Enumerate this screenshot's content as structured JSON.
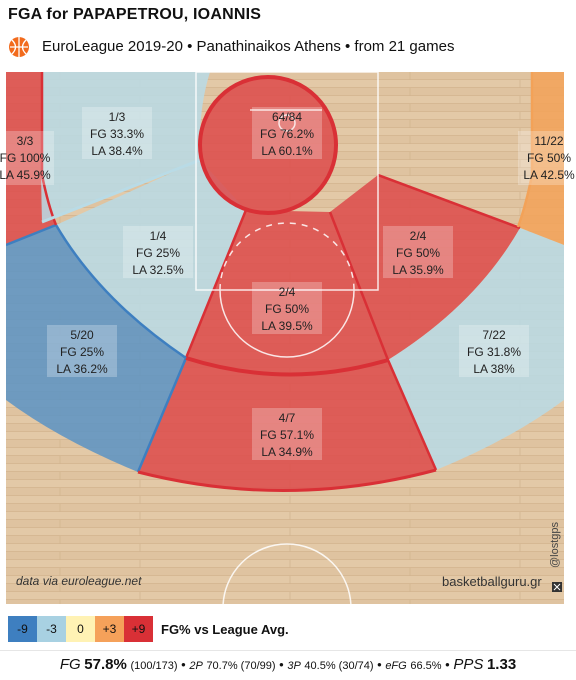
{
  "header": {
    "title": "FGA for PAPAPETROU, IOANNIS",
    "subtitle": "EuroLeague 2019-20 • Panathinaikos Athens • from  21 games"
  },
  "court": {
    "credit_left": "data via euroleague.net",
    "credit_right": "basketballguru.gr",
    "watermark": "@lostgps",
    "zones": [
      {
        "id": "left-corner-3",
        "made_att": "3/3",
        "fg": "FG 100%",
        "la": "LA 45.9%",
        "color": "#dd4a4a"
      },
      {
        "id": "left-wing-mid",
        "made_att": "1/3",
        "fg": "FG 33.3%",
        "la": "LA 38.4%",
        "color": "#b9dbe6"
      },
      {
        "id": "restricted-area",
        "made_att": "64/84",
        "fg": "FG 76.2%",
        "la": "LA 60.1%",
        "color": "#dd4a4a"
      },
      {
        "id": "right-corner-3",
        "made_att": "11/22",
        "fg": "FG 50%",
        "la": "LA 42.5%",
        "color": "#f3a258"
      },
      {
        "id": "left-baseline-mid",
        "made_att": "1/4",
        "fg": "FG 25%",
        "la": "LA 32.5%",
        "color": "#b9dbe6"
      },
      {
        "id": "right-baseline-mid",
        "made_att": "2/4",
        "fg": "FG 50%",
        "la": "LA 35.9%",
        "color": "#dd4a4a"
      },
      {
        "id": "paint-mid",
        "made_att": "2/4",
        "fg": "FG 50%",
        "la": "LA 39.5%",
        "color": "#dd4a4a"
      },
      {
        "id": "left-wing-3",
        "made_att": "5/20",
        "fg": "FG 25%",
        "la": "LA 36.2%",
        "color": "#5b93c4"
      },
      {
        "id": "right-wing-3",
        "made_att": "7/22",
        "fg": "FG 31.8%",
        "la": "LA 38%",
        "color": "#b9dbe6"
      },
      {
        "id": "top-3",
        "made_att": "4/7",
        "fg": "FG 57.1%",
        "la": "LA 34.9%",
        "color": "#dd4a4a"
      }
    ]
  },
  "legend": {
    "items": [
      {
        "label": "-9",
        "color": "#3e7fc0"
      },
      {
        "label": "-3",
        "color": "#a8d1e2"
      },
      {
        "label": "0",
        "color": "#fff2b4"
      },
      {
        "label": "+3",
        "color": "#f5a15a"
      },
      {
        "label": "+9",
        "color": "#d93036"
      }
    ],
    "caption": "FG% vs League Avg."
  },
  "summary": {
    "fg_label": "FG",
    "fg_value": "57.8%",
    "fg_detail": "(100/173)",
    "p2_label": "2P",
    "p2_value": "70.7% (70/99)",
    "p3_label": "3P",
    "p3_value": "40.5% (30/74)",
    "efg_label": "eFG",
    "efg_value": "66.5%",
    "pps_label": "PPS",
    "pps_value": "1.33"
  }
}
